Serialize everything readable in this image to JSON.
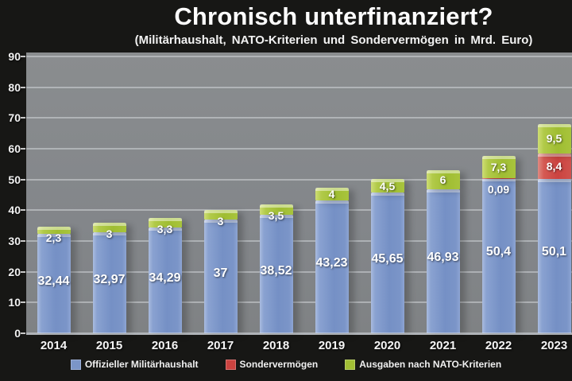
{
  "header": {
    "title": "Chronisch unterfinanziert?",
    "subtitle": "(Militärhaushalt, NATO-Kriterien und Sondervermögen in Mrd. Euro)"
  },
  "chart_data": {
    "type": "bar",
    "stacked": true,
    "unit": "Mrd. Euro",
    "title": "Chronisch unterfinanziert?",
    "subtitle": "(Militärhaushalt, NATO-Kriterien und Sondervermögen in Mrd. Euro)",
    "categories": [
      "2014",
      "2015",
      "2016",
      "2017",
      "2018",
      "2019",
      "2020",
      "2021",
      "2022",
      "2023"
    ],
    "series": [
      {
        "name": "Offizieller Militärhaushalt",
        "color": "#7b95c8",
        "values": [
          32.44,
          32.97,
          34.29,
          37,
          38.52,
          43.23,
          45.65,
          46.93,
          50.4,
          50.1
        ],
        "labels": [
          "32,44",
          "32,97",
          "34,29",
          "37",
          "38,52",
          "43,23",
          "45,65",
          "46,93",
          "50,4",
          "50,1"
        ]
      },
      {
        "name": "Sondervermögen",
        "color": "#cb4340",
        "values": [
          0,
          0,
          0,
          0,
          0,
          0,
          0,
          0,
          0.09,
          8.4
        ],
        "labels": [
          "",
          "",
          "",
          "",
          "",
          "",
          "",
          "",
          "0,09",
          "8,4"
        ]
      },
      {
        "name": "Ausgaben nach NATO-Kriterien",
        "color": "#a2bf35",
        "values": [
          2.3,
          3,
          3.3,
          3,
          3.5,
          4,
          4.5,
          6,
          7.3,
          9.5
        ],
        "labels": [
          "2,3",
          "3",
          "3,3",
          "3",
          "3,5",
          "4",
          "4,5",
          "6",
          "7,3",
          "9,5"
        ]
      }
    ],
    "ylim": [
      0,
      90
    ],
    "yticks": [
      0,
      10,
      20,
      30,
      40,
      50,
      60,
      70,
      80,
      90
    ],
    "grid": true,
    "legend_position": "bottom",
    "plot_background": "#85888a",
    "page_background": "#171715"
  }
}
